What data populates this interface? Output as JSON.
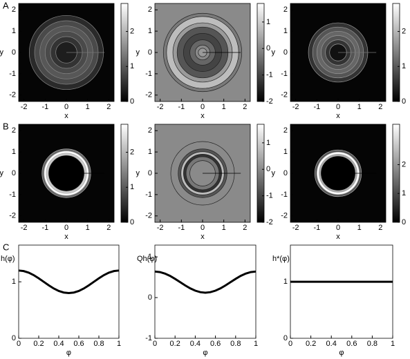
{
  "chart_data": [
    {
      "type": "contour",
      "panel_label": "A",
      "x_label": "x",
      "y_label": "y",
      "xlim": [
        -2.25,
        2.25
      ],
      "ylim": [
        -2.3,
        2.3
      ],
      "xticks": [
        -2,
        -1,
        0,
        1,
        2
      ],
      "yticks": [
        -2,
        -1,
        0,
        1,
        2
      ],
      "colorbar_lim": [
        0,
        2.8
      ],
      "colorbar_ticks": [
        0,
        1,
        2
      ]
    },
    {
      "type": "contour",
      "x_label": "x",
      "y_label": "y",
      "xlim": [
        -2.25,
        2.25
      ],
      "ylim": [
        -2.3,
        2.3
      ],
      "xticks": [
        -2,
        -1,
        0,
        1,
        2
      ],
      "yticks": [
        -2,
        -1,
        0,
        1,
        2
      ],
      "colorbar_lim": [
        -2,
        1.7
      ],
      "colorbar_ticks": [
        -2,
        -1,
        0,
        1
      ]
    },
    {
      "type": "contour",
      "x_label": "x",
      "y_label": "y",
      "xlim": [
        -2.25,
        2.25
      ],
      "ylim": [
        -2.3,
        2.3
      ],
      "xticks": [
        -2,
        -1,
        0,
        1,
        2
      ],
      "yticks": [
        -2,
        -1,
        0,
        1,
        2
      ],
      "colorbar_lim": [
        0,
        2.8
      ],
      "colorbar_ticks": [
        0,
        1,
        2
      ]
    },
    {
      "type": "contour",
      "panel_label": "B",
      "x_label": "x",
      "y_label": "y",
      "xlim": [
        -2.25,
        2.25
      ],
      "ylim": [
        -2.3,
        2.3
      ],
      "xticks": [
        -2,
        -1,
        0,
        1,
        2
      ],
      "yticks": [
        -2,
        -1,
        0,
        1,
        2
      ],
      "colorbar_lim": [
        0,
        2.8
      ],
      "colorbar_ticks": [
        0,
        1,
        2
      ]
    },
    {
      "type": "contour",
      "x_label": "x",
      "y_label": "y",
      "xlim": [
        -2.25,
        2.25
      ],
      "ylim": [
        -2.3,
        2.3
      ],
      "xticks": [
        -2,
        -1,
        0,
        1,
        2
      ],
      "yticks": [
        -2,
        -1,
        0,
        1,
        2
      ],
      "colorbar_lim": [
        -2,
        1.7
      ],
      "colorbar_ticks": [
        -2,
        -1,
        0,
        1
      ]
    },
    {
      "type": "contour",
      "x_label": "x",
      "y_label": "y",
      "xlim": [
        -2.25,
        2.25
      ],
      "ylim": [
        -2.3,
        2.3
      ],
      "xticks": [
        -2,
        -1,
        0,
        1,
        2
      ],
      "yticks": [
        -2,
        -1,
        0,
        1,
        2
      ],
      "colorbar_lim": [
        0,
        3.4
      ],
      "colorbar_ticks": [
        0,
        1,
        2
      ]
    },
    {
      "type": "line",
      "panel_label": "C",
      "x_label": "φ",
      "y_label": "h(φ)",
      "xlim": [
        0,
        1
      ],
      "ylim": [
        0,
        1.65
      ],
      "xticks": [
        0,
        0.2,
        0.4,
        0.6,
        0.8,
        1
      ],
      "yticks": [
        0,
        1
      ],
      "color": "#000000",
      "x": [
        0,
        0.05,
        0.1,
        0.15,
        0.2,
        0.25,
        0.3,
        0.35,
        0.4,
        0.45,
        0.5,
        0.55,
        0.6,
        0.65,
        0.7,
        0.75,
        0.8,
        0.85,
        0.9,
        0.95,
        1
      ],
      "values": [
        1.2,
        1.19,
        1.162,
        1.118,
        1.062,
        1,
        0.938,
        0.882,
        0.838,
        0.81,
        0.8,
        0.81,
        0.838,
        0.882,
        0.938,
        1,
        1.062,
        1.118,
        1.162,
        1.19,
        1.2
      ]
    },
    {
      "type": "line",
      "x_label": "φ",
      "y_label": "Qh(φ)",
      "xlim": [
        0,
        1
      ],
      "ylim": [
        -1,
        1.29
      ],
      "xticks": [
        0,
        0.2,
        0.4,
        0.6,
        0.8,
        1
      ],
      "yticks": [
        -1,
        0,
        1
      ],
      "color": "#000000",
      "x": [
        0,
        0.05,
        0.1,
        0.15,
        0.2,
        0.25,
        0.3,
        0.35,
        0.4,
        0.45,
        0.5,
        0.55,
        0.6,
        0.65,
        0.7,
        0.75,
        0.8,
        0.85,
        0.9,
        0.95,
        1
      ],
      "values": [
        0.64,
        0.627,
        0.59,
        0.533,
        0.46,
        0.38,
        0.3,
        0.227,
        0.17,
        0.133,
        0.12,
        0.133,
        0.17,
        0.227,
        0.3,
        0.38,
        0.46,
        0.533,
        0.59,
        0.627,
        0.64
      ]
    },
    {
      "type": "line",
      "x_label": "φ",
      "y_label": "h*(φ)",
      "xlim": [
        0,
        1
      ],
      "ylim": [
        0,
        1.65
      ],
      "xticks": [
        0,
        0.2,
        0.4,
        0.6,
        0.8,
        1
      ],
      "yticks": [
        0,
        1
      ],
      "color": "#000000",
      "x": [
        0,
        1
      ],
      "values": [
        1,
        1
      ]
    }
  ]
}
